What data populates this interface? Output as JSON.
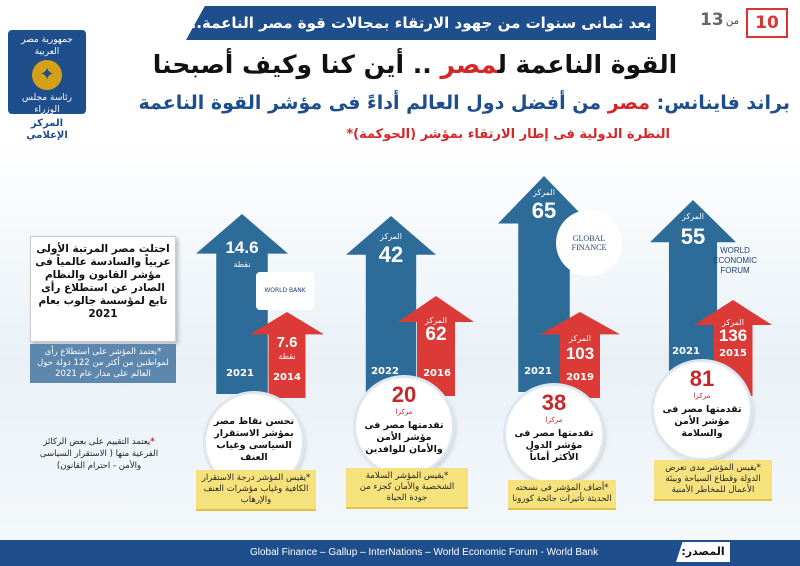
{
  "header": {
    "banner": "بعد ثمانى سنوات من جهود الارتقاء بمجالات قوة مصر الناعمة..",
    "page_current": "10",
    "page_of": "من",
    "page_total": "13"
  },
  "logo": {
    "line1": "جمهورية مصر العربية",
    "line2": "رئاسة مجلس الوزراء",
    "line3": "المركز الإعلامي"
  },
  "titles": {
    "main_a": "القوة الناعمة ل",
    "main_hl": "مصر",
    "main_b": " .. أين كنا وكيف أصبحنا",
    "sub_a": "براند فاينانس: ",
    "sub_hl": "مصر",
    "sub_b": " من أفضل دول العالم أداءً فى مؤشر القوة الناعمة",
    "section": "النظرة الدولية فى إطار الارتقاء بمؤشر (الحوكمة)*"
  },
  "side": {
    "box": "احتلت مصر المرتبة الأولى عربياً والسادسة عالمياً فى مؤشر القانون والنظام الصادر عن استطلاع رأى تابع لمؤسسة جالوب بعام 2021",
    "note": "*يعتمد المؤشر على استطلاع رأى لمواطنين من أكثر من 122 دولة حول العالم على مدار عام 2021",
    "foot_star": "*",
    "foot": "يعتمد التقييم على بعض الركائز الفرعية منها ( الاستقرار السياسى والأمن - احترام القانون)"
  },
  "indicators": [
    {
      "org": "WORLD BANK GROUP",
      "blue_value": "14.6",
      "blue_unit": "نقطة",
      "blue_year": "2021",
      "red_value": "7.6",
      "red_unit": "نقطة",
      "red_year": "2014",
      "circle_num": "",
      "circle_unit": "",
      "circle_text": "تحسن نقاط مصر بمؤشر الاستقرار السياسى وغياب العنف",
      "note": "*يقيس المؤشر درجة الاستقرار الكافية وغياب مؤشرات العنف والإرهاب"
    },
    {
      "org": "",
      "blue_label": "المركز",
      "blue_value": "42",
      "blue_year": "2022",
      "red_label": "المركز",
      "red_value": "62",
      "red_year": "2016",
      "circle_num": "20",
      "circle_unit": "مركزا",
      "circle_text": "تقدمتها مصر فى مؤشر الأمن والأمان للوافدين",
      "note": "*يقيس المؤشر السلامة الشخصية والأمان كجزء من جودة الحياة"
    },
    {
      "org": "GLOBAL FINANCE",
      "blue_label": "المركز",
      "blue_value": "65",
      "blue_year": "2021",
      "red_label": "المركز",
      "red_value": "103",
      "red_year": "2019",
      "circle_num": "38",
      "circle_unit": "مركزا",
      "circle_text": "تقدمتها مصر فى مؤشر الدول الأكثر أماناً",
      "note": "*أضاف المؤشر فى نسخته الحديثة تأثيرات جائحة كورونا"
    },
    {
      "org_l1": "WORLD",
      "org_l2": "ECONOMIC",
      "org_l3": "FORUM",
      "blue_label": "المركز",
      "blue_value": "55",
      "blue_year": "2021",
      "red_label": "المركز",
      "red_value": "136",
      "red_year": "2015",
      "circle_num": "81",
      "circle_unit": "مركزا",
      "circle_text": "تقدمتها مصر فى مؤشر الأمن والسلامة",
      "note": "*يقيس المؤشر مدى تعرض الدولة وقطاع السياحة وبيئة الأعمال للمخاطر الأمنية"
    }
  ],
  "source": {
    "label": "المصدر:",
    "text": "Global Finance – Gallup – InterNations –  World Economic Forum -  World Bank"
  }
}
